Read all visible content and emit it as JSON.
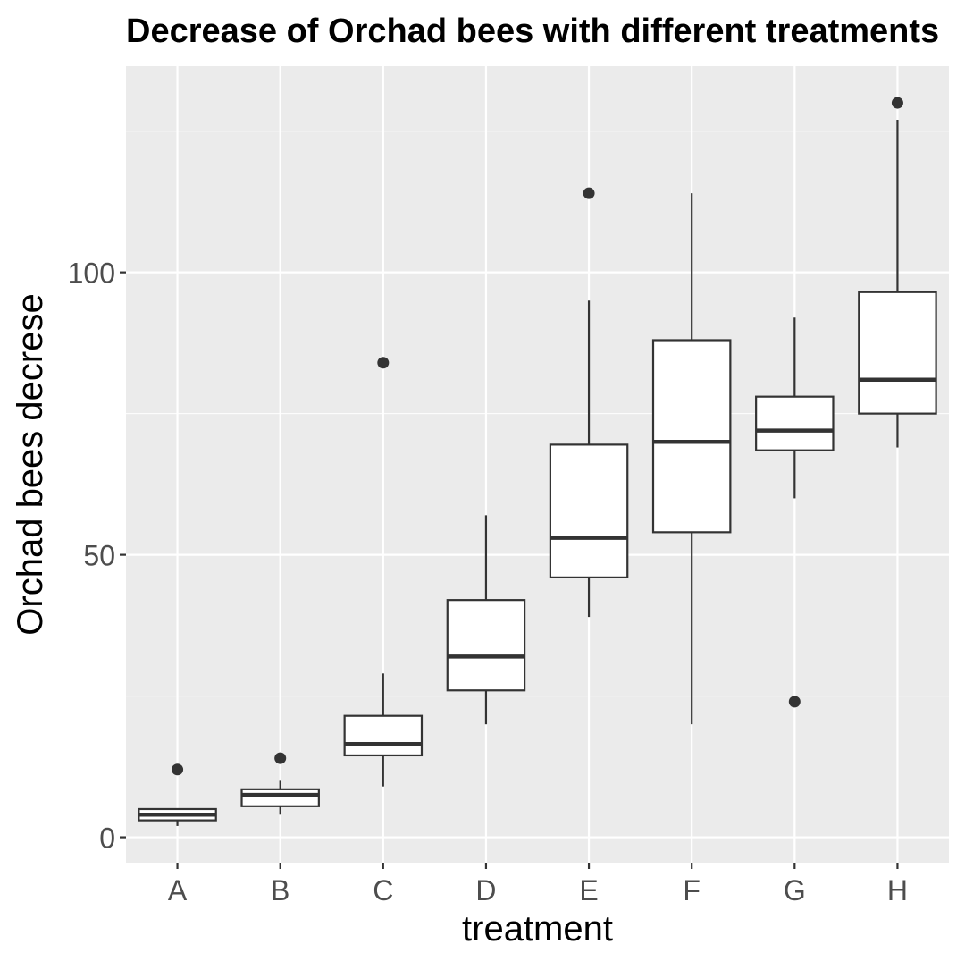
{
  "chart_data": {
    "type": "boxplot",
    "title": "Decrease of Orchad bees with different treatments",
    "xlabel": "treatment",
    "ylabel": "Orchad bees decrese",
    "ylim": [
      -4.5,
      136.5
    ],
    "y_ticks": [
      0,
      50,
      100
    ],
    "grid": true,
    "categories": [
      "A",
      "B",
      "C",
      "D",
      "E",
      "F",
      "G",
      "H"
    ],
    "boxes": [
      {
        "category": "A",
        "whisker_low": 2,
        "q1": 3,
        "median": 4,
        "q3": 5,
        "whisker_high": 5,
        "outliers": [
          12
        ]
      },
      {
        "category": "B",
        "whisker_low": 4,
        "q1": 5.5,
        "median": 7.5,
        "q3": 8.5,
        "whisker_high": 10,
        "outliers": [
          14
        ]
      },
      {
        "category": "C",
        "whisker_low": 9,
        "q1": 14.5,
        "median": 16.5,
        "q3": 21.5,
        "whisker_high": 29,
        "outliers": [
          84
        ]
      },
      {
        "category": "D",
        "whisker_low": 20,
        "q1": 26,
        "median": 32,
        "q3": 42,
        "whisker_high": 57,
        "outliers": []
      },
      {
        "category": "E",
        "whisker_low": 39,
        "q1": 46,
        "median": 53,
        "q3": 69.5,
        "whisker_high": 95,
        "outliers": [
          114
        ]
      },
      {
        "category": "F",
        "whisker_low": 20,
        "q1": 54,
        "median": 70,
        "q3": 88,
        "whisker_high": 114,
        "outliers": []
      },
      {
        "category": "G",
        "whisker_low": 60,
        "q1": 68.5,
        "median": 72,
        "q3": 78,
        "whisker_high": 92,
        "outliers": [
          24
        ]
      },
      {
        "category": "H",
        "whisker_low": 69,
        "q1": 75,
        "median": 81,
        "q3": 96.5,
        "whisker_high": 127,
        "outliers": [
          130
        ]
      }
    ]
  }
}
